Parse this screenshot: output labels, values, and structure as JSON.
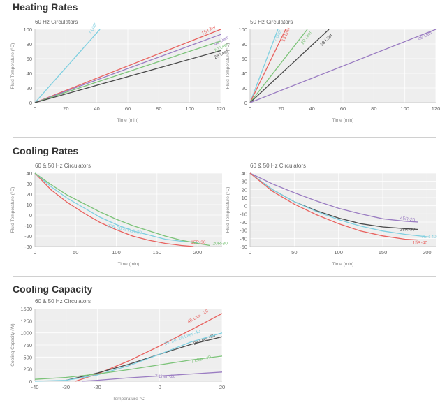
{
  "sections": {
    "heating": "Heating Rates",
    "cooling_rates": "Cooling Rates",
    "cooling_capacity": "Cooling Capacity"
  },
  "colors": {
    "cyan": "#7ecfe0",
    "red": "#e8615e",
    "green": "#7cc379",
    "purple": "#9a7cc2",
    "dark": "#4a4a4a",
    "plot_bg": "#eeeeee",
    "grid": "#ffffff"
  },
  "chart_data": [
    {
      "type": "line",
      "title": "60 Hz Circulators",
      "xlabel": "Time (min)",
      "ylabel": "Fluid Temperature (°C)",
      "xlim": [
        0,
        120
      ],
      "ylim": [
        0,
        100
      ],
      "xticks": [
        0,
        20,
        40,
        60,
        80,
        100,
        120
      ],
      "yticks": [
        0,
        20,
        40,
        60,
        80,
        100
      ],
      "grid": true,
      "series": [
        {
          "name": "7 Liter",
          "color": "cyan",
          "x": [
            0,
            42
          ],
          "y": [
            0,
            100
          ]
        },
        {
          "name": "15 Liter",
          "color": "red",
          "x": [
            0,
            120
          ],
          "y": [
            0,
            100
          ]
        },
        {
          "name": "45 Liter",
          "color": "purple",
          "x": [
            0,
            120
          ],
          "y": [
            0,
            93
          ]
        },
        {
          "name": "20 Liter",
          "color": "green",
          "x": [
            0,
            120
          ],
          "y": [
            0,
            84
          ]
        },
        {
          "name": "28 Liter",
          "color": "dark",
          "x": [
            0,
            120
          ],
          "y": [
            0,
            71
          ]
        }
      ]
    },
    {
      "type": "line",
      "title": "50 Hz Circulators",
      "xlabel": "Time (min)",
      "ylabel": "Fluid Temperature (°C)",
      "xlim": [
        0,
        120
      ],
      "ylim": [
        0,
        100
      ],
      "xticks": [
        0,
        20,
        40,
        60,
        80,
        100,
        120
      ],
      "yticks": [
        0,
        20,
        40,
        60,
        80,
        100
      ],
      "grid": true,
      "series": [
        {
          "name": "7 Liter",
          "color": "cyan",
          "x": [
            0,
            18
          ],
          "y": [
            0,
            100
          ]
        },
        {
          "name": "15 Liter",
          "color": "red",
          "x": [
            0,
            23
          ],
          "y": [
            0,
            100
          ]
        },
        {
          "name": "20 Liter",
          "color": "green",
          "x": [
            0,
            37
          ],
          "y": [
            0,
            100
          ]
        },
        {
          "name": "28 Liter",
          "color": "dark",
          "x": [
            0,
            51
          ],
          "y": [
            0,
            100
          ]
        },
        {
          "name": "45 Liter",
          "color": "purple",
          "x": [
            0,
            120
          ],
          "y": [
            0,
            100
          ]
        }
      ]
    },
    {
      "type": "line",
      "title": "60 & 50 Hz Circulators",
      "xlabel": "Time (min)",
      "ylabel": "Fluid Temperature (°C)",
      "xlim": [
        0,
        230
      ],
      "ylim": [
        -30,
        40
      ],
      "xticks": [
        0,
        50,
        100,
        150,
        200
      ],
      "yticks": [
        -30,
        -20,
        -10,
        0,
        10,
        20,
        30,
        40
      ],
      "grid": true,
      "series": [
        {
          "name": "15R-30",
          "color": "red",
          "x": [
            0,
            20,
            40,
            60,
            80,
            100,
            120,
            140,
            160,
            180,
            195
          ],
          "y": [
            40,
            24,
            12,
            2,
            -7,
            -14,
            -20,
            -24,
            -27,
            -29,
            -30
          ]
        },
        {
          "name": "07R-20 & 7LR-20",
          "color": "cyan",
          "x": [
            0,
            20,
            40,
            60,
            80,
            100,
            120,
            140,
            160,
            180,
            200
          ],
          "y": [
            40,
            27,
            16,
            7,
            -2,
            -9,
            -15,
            -19,
            -23,
            -25,
            -26
          ]
        },
        {
          "name": "20R-30",
          "color": "green",
          "x": [
            0,
            20,
            40,
            60,
            80,
            100,
            120,
            140,
            160,
            180,
            200,
            215
          ],
          "y": [
            40,
            29,
            19,
            11,
            3,
            -4,
            -10,
            -15,
            -20,
            -24,
            -27,
            -29
          ]
        }
      ]
    },
    {
      "type": "line",
      "title": "60 & 50 Hz Circulators",
      "xlabel": "Time (min)",
      "ylabel": "Fluid Temperature (°C)",
      "xlim": [
        0,
        210
      ],
      "ylim": [
        -50,
        40
      ],
      "xticks": [
        0,
        50,
        100,
        150,
        200
      ],
      "yticks": [
        -50,
        -40,
        -30,
        -20,
        -10,
        0,
        10,
        20,
        30,
        40
      ],
      "grid": true,
      "series": [
        {
          "name": "45R-20",
          "color": "purple",
          "x": [
            0,
            25,
            50,
            75,
            100,
            125,
            150,
            175,
            190
          ],
          "y": [
            40,
            27,
            16,
            6,
            -3,
            -10,
            -16,
            -19,
            -20
          ]
        },
        {
          "name": "28R-30",
          "color": "dark",
          "x": [
            0,
            25,
            50,
            75,
            100,
            125,
            150,
            175,
            190
          ],
          "y": [
            40,
            20,
            5,
            -6,
            -15,
            -22,
            -26,
            -28,
            -29
          ]
        },
        {
          "name": "7LR-40",
          "color": "cyan",
          "x": [
            0,
            25,
            50,
            75,
            100,
            125,
            150,
            175,
            200
          ],
          "y": [
            40,
            20,
            5,
            -7,
            -17,
            -25,
            -31,
            -35,
            -38
          ]
        },
        {
          "name": "15R-40",
          "color": "red",
          "x": [
            0,
            25,
            50,
            75,
            100,
            125,
            150,
            175,
            190
          ],
          "y": [
            40,
            18,
            2,
            -11,
            -22,
            -31,
            -37,
            -41,
            -42
          ]
        }
      ]
    },
    {
      "type": "line",
      "title": "60 & 50 Hz Circulators",
      "xlabel": "Temperature °C",
      "ylabel": "Cooling Capacity (W)",
      "xlim": [
        -40,
        20
      ],
      "ylim": [
        0,
        1500
      ],
      "xticks": [
        -40,
        -30,
        -20,
        0,
        20
      ],
      "yticks": [
        0,
        250,
        500,
        750,
        1000,
        1250,
        1500
      ],
      "grid": true,
      "series": [
        {
          "name": "45 Liter -20",
          "color": "red",
          "x": [
            -27,
            -20,
            -10,
            0,
            10,
            20
          ],
          "y": [
            0,
            150,
            420,
            730,
            1060,
            1400
          ]
        },
        {
          "name": "28 Liter -30",
          "color": "dark",
          "x": [
            -30,
            -20,
            -10,
            0,
            10,
            20
          ],
          "y": [
            20,
            170,
            350,
            560,
            760,
            920
          ]
        },
        {
          "name": "15, 20, 28 Liter -40",
          "color": "cyan",
          "x": [
            -40,
            -30,
            -20,
            -10,
            0,
            10,
            20
          ],
          "y": [
            0,
            20,
            130,
            320,
            560,
            810,
            1000
          ]
        },
        {
          "name": "7 Liter -40",
          "color": "green",
          "x": [
            -40,
            -30,
            -20,
            -10,
            0,
            10,
            20
          ],
          "y": [
            40,
            80,
            150,
            240,
            340,
            440,
            520
          ]
        },
        {
          "name": "7 Liter -20",
          "color": "purple",
          "x": [
            -25,
            -20,
            -10,
            0,
            10,
            20
          ],
          "y": [
            0,
            20,
            70,
            110,
            150,
            190
          ]
        }
      ]
    }
  ]
}
